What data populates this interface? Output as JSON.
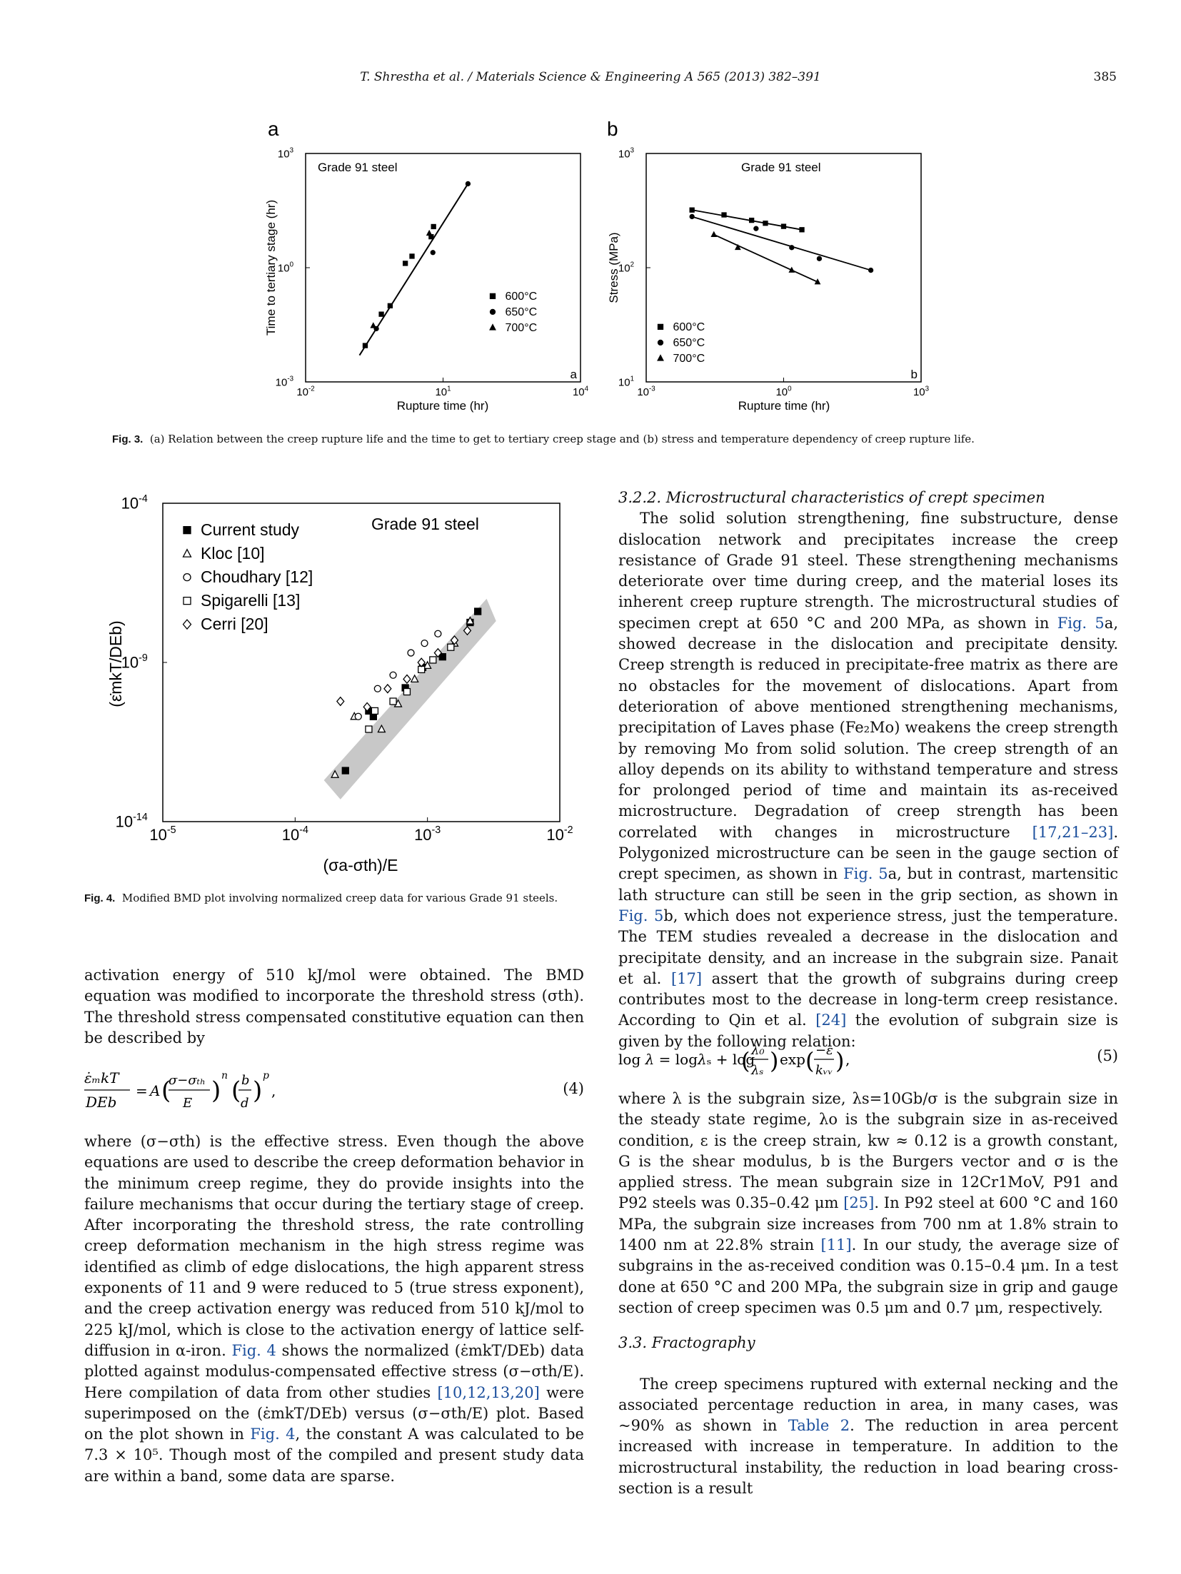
{
  "header": {
    "citation": "T. Shrestha et al. / Materials Science & Engineering A 565 (2013) 382–391",
    "page_number": "385"
  },
  "figure3": {
    "panel_a": {
      "panel_label": "a",
      "corner_label": "a",
      "title": "Grade 91 steel",
      "xlabel": "Rupture time (hr)",
      "ylabel": "Time to tertiary stage (hr)",
      "x_ticks": [
        "10",
        "10",
        "10"
      ],
      "x_tick_exps": [
        "-2",
        "1",
        "4"
      ],
      "y_ticks": [
        "10",
        "10",
        "10"
      ],
      "y_tick_exps": [
        "-3",
        "0",
        "3"
      ],
      "legend": [
        {
          "marker": "■",
          "label": "600°C"
        },
        {
          "marker": "●",
          "label": "650°C"
        },
        {
          "marker": "▲",
          "label": "700°C"
        }
      ]
    },
    "panel_b": {
      "panel_label": "b",
      "corner_label": "b",
      "title": "Grade 91 steel",
      "xlabel": "Rupture time (hr)",
      "ylabel": "Stress (MPa)",
      "x_ticks": [
        "10",
        "10",
        "10"
      ],
      "x_tick_exps": [
        "-3",
        "0",
        "3"
      ],
      "y_ticks": [
        "10",
        "10",
        "10"
      ],
      "y_tick_exps": [
        "1",
        "2",
        "3"
      ],
      "legend": [
        {
          "marker": "■",
          "label": "600°C"
        },
        {
          "marker": "●",
          "label": "650°C"
        },
        {
          "marker": "▲",
          "label": "700°C"
        }
      ]
    },
    "caption_label": "Fig. 3.",
    "caption_text": "(a) Relation between the creep rupture life and the time to get to tertiary creep stage and (b) stress and temperature dependency of creep rupture life."
  },
  "figure4": {
    "title": "Grade 91 steel",
    "ylabel": "(ε̇mkT/DEb)",
    "xlabel": "(σa-σth)/E",
    "x_ticks": [
      "10",
      "10",
      "10",
      "10"
    ],
    "x_tick_exps": [
      "-5",
      "-4",
      "-3",
      "-2"
    ],
    "y_ticks": [
      "10",
      "10",
      "10"
    ],
    "y_tick_exps": [
      "-4",
      "-9",
      "-14"
    ],
    "legend": [
      {
        "marker": "■",
        "label": "Current study"
      },
      {
        "marker": "△",
        "label": "Kloc [10]"
      },
      {
        "marker": "○",
        "label": "Choudhary [12]"
      },
      {
        "marker": "□",
        "label": "Spigarelli [13]"
      },
      {
        "marker": "◇",
        "label": "Cerri [20]"
      }
    ],
    "caption_label": "Fig. 4.",
    "caption_text": "Modified BMD plot involving normalized creep data for various Grade 91 steels."
  },
  "chart_data": [
    {
      "type": "scatter",
      "title": "Grade 91 steel",
      "xlabel": "Rupture time (hr)",
      "ylabel": "Time to tertiary stage (hr)",
      "x_scale": "log",
      "y_scale": "log",
      "xlim": [
        0.01,
        10000
      ],
      "ylim": [
        0.001,
        1000
      ],
      "series": [
        {
          "name": "600°C",
          "marker": "square",
          "x": [
            0.2,
            0.45,
            0.7,
            1.5,
            2.1,
            5.5,
            6.2
          ],
          "y": [
            0.009,
            0.06,
            0.1,
            1.3,
            2.0,
            6.5,
            12
          ]
        },
        {
          "name": "650°C",
          "marker": "circle",
          "x": [
            0.35,
            6.0,
            35
          ],
          "y": [
            0.025,
            2.5,
            160
          ]
        },
        {
          "name": "700°C",
          "marker": "triangle",
          "x": [
            0.3,
            5.0
          ],
          "y": [
            0.03,
            8.0
          ]
        }
      ],
      "fit_line": {
        "x": [
          0.15,
          35
        ],
        "y": [
          0.005,
          160
        ]
      }
    },
    {
      "type": "scatter",
      "title": "Grade 91 steel",
      "xlabel": "Rupture time (hr)",
      "ylabel": "Stress (MPa)",
      "x_scale": "log",
      "y_scale": "log",
      "xlim": [
        0.001,
        1000
      ],
      "ylim": [
        10,
        1000
      ],
      "series": [
        {
          "name": "600°C",
          "marker": "square",
          "x": [
            0.01,
            0.05,
            0.2,
            0.4,
            1.0,
            2.5
          ],
          "y": [
            320,
            290,
            260,
            245,
            230,
            215
          ]
        },
        {
          "name": "650°C",
          "marker": "circle",
          "x": [
            0.01,
            0.25,
            1.5,
            6.0,
            80
          ],
          "y": [
            280,
            220,
            150,
            120,
            95
          ]
        },
        {
          "name": "700°C",
          "marker": "triangle",
          "x": [
            0.03,
            0.1,
            1.5,
            5.5
          ],
          "y": [
            195,
            150,
            95,
            75
          ]
        }
      ]
    },
    {
      "type": "scatter",
      "title": "Grade 91 steel",
      "xlabel": "(σa-σth)/E",
      "ylabel": "(ε̇mkT/DEb)",
      "x_scale": "log",
      "y_scale": "log",
      "xlim": [
        1e-05,
        0.01
      ],
      "ylim": [
        1e-14,
        0.0001
      ],
      "series": [
        {
          "name": "Current study",
          "marker": "filled-square",
          "x": [
            0.00024,
            0.00036,
            0.00039,
            0.00068,
            0.00092,
            0.0013,
            0.0021,
            0.0024
          ],
          "y": [
            4e-13,
            3e-11,
            2e-11,
            1.6e-10,
            7e-10,
            1.5e-09,
            1.8e-08,
            4e-08
          ]
        },
        {
          "name": "Kloc [10]",
          "marker": "open-triangle",
          "x": [
            0.0002,
            0.00028,
            0.00045,
            0.0006,
            0.0008,
            0.001,
            0.0016,
            0.0021
          ],
          "y": [
            3e-13,
            2e-11,
            8e-12,
            5e-11,
            3e-10,
            8e-10,
            4e-09,
            2e-08
          ]
        },
        {
          "name": "Choudhary [12]",
          "marker": "open-circle",
          "x": [
            0.0003,
            0.00042,
            0.00055,
            0.00075,
            0.00095,
            0.0012
          ],
          "y": [
            2e-11,
            1.5e-10,
            4e-10,
            2e-09,
            4e-09,
            8e-09
          ]
        },
        {
          "name": "Spigarelli [13]",
          "marker": "open-square",
          "x": [
            0.00036,
            0.0004,
            0.00055,
            0.0007,
            0.0009,
            0.0011,
            0.0015
          ],
          "y": [
            8e-12,
            3e-11,
            6e-11,
            1.2e-10,
            6e-10,
            1.2e-09,
            3e-09
          ]
        },
        {
          "name": "Cerri [20]",
          "marker": "open-diamond",
          "x": [
            0.00022,
            0.00035,
            0.0005,
            0.0007,
            0.0009,
            0.0012,
            0.0016,
            0.002
          ],
          "y": [
            6e-11,
            4e-11,
            1.5e-10,
            3e-10,
            1e-09,
            2e-09,
            5e-09,
            1e-08
          ]
        }
      ]
    }
  ],
  "left_column": {
    "paragraph1": "activation energy of 510 kJ/mol were obtained. The BMD equation was modified to incorporate the threshold stress (σth). The threshold stress compensated constitutive equation can then be described by",
    "eq4_number": "(4)",
    "paragraph2_a": "where (σ−σth) is the effective stress. Even though the above equations are used to describe the creep deformation behavior in the minimum creep regime, they do provide insights into the failure mechanisms that occur during the tertiary stage of creep. After incorporating the threshold stress, the rate controlling creep deformation mechanism in the high stress regime was identified as climb of edge dislocations, the high apparent stress exponents of 11 and 9 were reduced to 5 (true stress exponent), and the creep activation energy was reduced from 510 kJ/mol to 225 kJ/mol, which is close to the activation energy of lattice self-diffusion in α-iron. ",
    "paragraph2_ref1": "Fig. 4",
    "paragraph2_b": " shows the normalized (ε̇mkT/DEb) data plotted against modulus-compensated effective stress (σ−σth/E). Here compilation of data from other studies ",
    "paragraph2_ref2": "[10,12,13,20]",
    "paragraph2_c": " were superimposed on the (ε̇mkT/DEb) versus (σ−σth/E) plot. Based on the plot shown in ",
    "paragraph2_ref3": "Fig. 4",
    "paragraph2_d": ", the constant A was calculated to be 7.3 × 10⁵. Though most of the compiled and present study data are within a band, some data are sparse."
  },
  "right_column": {
    "section_322": "3.2.2.  Microstructural characteristics of crept specimen",
    "p1_a": "The solid solution strengthening, fine substructure, dense dislocation network and precipitates increase the creep resistance of Grade 91 steel. These strengthening mechanisms deteriorate over time during creep, and the material loses its inherent creep rupture strength. The microstructural studies of specimen crept at 650 °C and 200 MPa, as shown in ",
    "p1_ref1": "Fig. 5",
    "p1_b": "a, showed decrease in the dislocation and precipitate density. Creep strength is reduced in precipitate-free matrix as there are no obstacles for the movement of dislocations. Apart from deterioration of above mentioned strengthening mechanisms, precipitation of Laves phase (Fe₂Mo) weakens the creep strength by removing Mo from solid solution. The creep strength of an alloy depends on its ability to withstand temperature and stress for prolonged period of time and maintain its as-received microstructure. Degradation of creep strength has been correlated with changes in microstructure ",
    "p1_ref2": "[17,21–23]",
    "p1_c": ". Polygonized microstructure can be seen in the gauge section of crept specimen, as shown in ",
    "p1_ref3": "Fig. 5",
    "p1_d": "a, but in contrast, martensitic lath structure can still be seen in the grip section, as shown in ",
    "p1_ref4": "Fig. 5",
    "p1_e": "b, which does not experience stress, just the temperature. The TEM studies revealed a decrease in the dislocation and precipitate density, and an increase in the subgrain size. Panait et al. ",
    "p1_ref5": "[17]",
    "p1_f": " assert that the growth of subgrains during creep contributes most to the decrease in long-term creep resistance. According to Qin et al. ",
    "p1_ref6": "[24]",
    "p1_g": " the evolution of subgrain size is given by the following relation:",
    "eq5_number": "(5)",
    "p2_a": "where λ is the subgrain size, λs=10Gb/σ is the subgrain size in the steady state regime, λo is the subgrain size in as-received condition, ε is the creep strain, kw ≈ 0.12 is a growth constant, G is the shear modulus, b is the Burgers vector and σ is the applied stress. The mean subgrain size in 12Cr1MoV, P91 and P92 steels was 0.35–0.42 μm ",
    "p2_ref1": "[25]",
    "p2_b": ". In P92 steel at 600 °C and 160 MPa, the subgrain size increases from 700 nm at 1.8% strain to 1400 nm at 22.8% strain ",
    "p2_ref2": "[11]",
    "p2_c": ". In our study, the average size of subgrains in the as-received condition was 0.15–0.4 μm. In a test done at 650 °C and 200 MPa, the subgrain size in grip and gauge section of creep specimen was 0.5 μm and 0.7 μm, respectively.",
    "section_33": "3.3.  Fractography",
    "p3_a": "The creep specimens ruptured with external necking and the associated percentage reduction in area, in many cases, was ~90% as shown in ",
    "p3_ref1": "Table 2",
    "p3_b": ". The reduction in area percent increased with increase in temperature. In addition to the microstructural instability, the reduction in load bearing cross-section is a result"
  }
}
